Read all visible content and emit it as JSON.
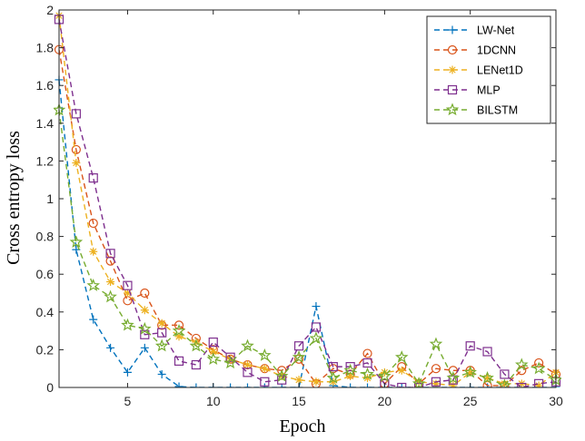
{
  "chart_data": {
    "type": "line",
    "title": "",
    "xlabel": "Epoch",
    "ylabel": "Cross entropy loss",
    "xlim": [
      1,
      30
    ],
    "ylim": [
      0,
      2
    ],
    "xticks": [
      5,
      10,
      15,
      20,
      25,
      30
    ],
    "yticks": [
      0,
      0.2,
      0.4,
      0.6,
      0.8,
      1,
      1.2,
      1.4,
      1.6,
      1.8,
      2
    ],
    "ytick_labels": [
      "0",
      "0.2",
      "0.4",
      "0.6",
      "0.8",
      "1",
      "1.2",
      "1.4",
      "1.6",
      "1.8",
      "2"
    ],
    "grid": false,
    "legend_position": "top-right",
    "x": [
      1,
      2,
      3,
      4,
      5,
      6,
      7,
      8,
      9,
      10,
      11,
      12,
      13,
      14,
      15,
      16,
      17,
      18,
      19,
      20,
      21,
      22,
      23,
      24,
      25,
      26,
      27,
      28,
      29,
      30
    ],
    "series": [
      {
        "name": "LW-Net",
        "color": "#0072bd",
        "marker": "plus",
        "values": [
          1.63,
          0.73,
          0.36,
          0.21,
          0.08,
          0.21,
          0.07,
          0.005,
          0.0,
          0.0,
          0.0,
          0.0,
          0.0,
          0.0,
          0.0,
          0.43,
          0.01,
          0.0,
          0.0,
          0.0,
          0.0,
          0.0,
          0.0,
          0.0,
          0.0,
          0.0,
          0.0,
          0.0,
          0.0,
          0.0
        ]
      },
      {
        "name": "1DCNN",
        "color": "#d95319",
        "marker": "circle",
        "values": [
          1.79,
          1.26,
          0.87,
          0.67,
          0.46,
          0.5,
          0.33,
          0.33,
          0.26,
          0.2,
          0.15,
          0.12,
          0.1,
          0.09,
          0.15,
          0.02,
          0.1,
          0.07,
          0.18,
          0.02,
          0.11,
          0.02,
          0.1,
          0.09,
          0.09,
          0.01,
          0.01,
          0.09,
          0.13,
          0.07
        ]
      },
      {
        "name": "LENet1D",
        "color": "#edb120",
        "marker": "asterisk",
        "values": [
          1.97,
          1.19,
          0.72,
          0.56,
          0.5,
          0.41,
          0.34,
          0.27,
          0.24,
          0.19,
          0.15,
          0.12,
          0.1,
          0.06,
          0.04,
          0.03,
          0.03,
          0.06,
          0.05,
          0.08,
          0.09,
          0.03,
          0.02,
          0.01,
          0.08,
          0.05,
          0.02,
          0.02,
          0.01,
          0.08
        ]
      },
      {
        "name": "MLP",
        "color": "#7e2f8e",
        "marker": "square",
        "values": [
          1.95,
          1.45,
          1.11,
          0.71,
          0.54,
          0.28,
          0.29,
          0.14,
          0.12,
          0.24,
          0.16,
          0.08,
          0.03,
          0.04,
          0.22,
          0.32,
          0.11,
          0.11,
          0.13,
          0.02,
          0.0,
          0.0,
          0.03,
          0.04,
          0.22,
          0.19,
          0.07,
          0.0,
          0.02,
          0.03
        ]
      },
      {
        "name": "BILSTM",
        "color": "#77ac30",
        "marker": "star",
        "values": [
          1.47,
          0.77,
          0.54,
          0.48,
          0.33,
          0.31,
          0.22,
          0.3,
          0.22,
          0.15,
          0.13,
          0.22,
          0.17,
          0.06,
          0.16,
          0.26,
          0.05,
          0.09,
          0.07,
          0.06,
          0.16,
          0.02,
          0.23,
          0.05,
          0.08,
          0.05,
          0.01,
          0.12,
          0.1,
          0.04
        ]
      }
    ]
  }
}
